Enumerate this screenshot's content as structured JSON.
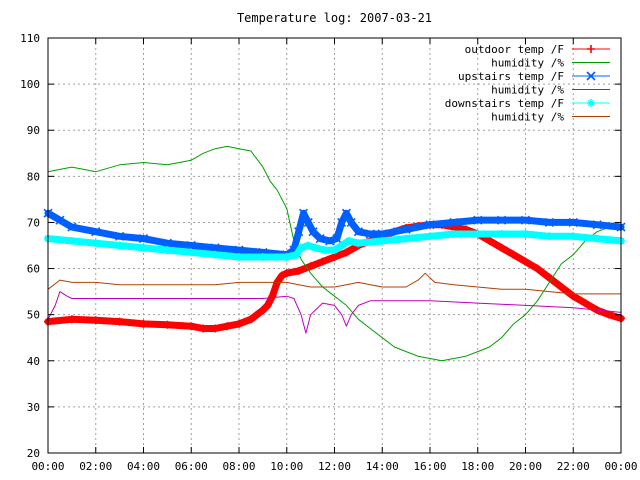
{
  "chart_data": {
    "type": "line",
    "title": "Temperature log: 2007-03-21",
    "xlabel": "",
    "ylabel": "",
    "xlim": [
      0,
      24
    ],
    "ylim": [
      20,
      110
    ],
    "grid": true,
    "legend_position": "top-right",
    "x_ticks": [
      "00:00",
      "02:00",
      "04:00",
      "06:00",
      "08:00",
      "10:00",
      "12:00",
      "14:00",
      "16:00",
      "18:00",
      "20:00",
      "22:00",
      "00:00"
    ],
    "y_ticks": [
      "20",
      "30",
      "40",
      "50",
      "60",
      "70",
      "80",
      "90",
      "100",
      "110"
    ],
    "series": [
      {
        "name": "outdoor temp /F",
        "color": "#ff0000",
        "marker": "plus",
        "x": [
          0,
          1,
          2,
          3,
          4,
          5,
          6,
          6.5,
          7,
          7.5,
          8,
          8.5,
          9,
          9.2,
          9.4,
          9.6,
          9.8,
          10,
          10.5,
          11,
          11.5,
          12,
          12.5,
          13,
          13.5,
          14,
          14.5,
          15,
          15.5,
          16,
          16.5,
          17,
          17.5,
          18,
          18.5,
          19,
          19.5,
          20,
          20.5,
          21,
          21.5,
          22,
          22.5,
          23,
          23.5,
          24
        ],
        "values": [
          48.5,
          49,
          48.8,
          48.5,
          48,
          47.8,
          47.5,
          47,
          47,
          47.5,
          48,
          49,
          51,
          52,
          54,
          57,
          58.5,
          59,
          59.5,
          60.5,
          61.5,
          62.5,
          63.5,
          65,
          66,
          67,
          68,
          68.8,
          69.2,
          69.5,
          69.5,
          69,
          68.5,
          67.5,
          66,
          64.5,
          63,
          61.5,
          60,
          58,
          56,
          54,
          52.5,
          51,
          50,
          49.2
        ]
      },
      {
        "name": "humidity /%",
        "color": "#00a000",
        "marker": "none",
        "x": [
          0,
          0.5,
          1,
          1.5,
          2,
          3,
          4,
          5,
          6,
          6.5,
          7,
          7.5,
          8,
          8.5,
          9,
          9.3,
          9.6,
          10,
          10.3,
          10.6,
          11,
          11.5,
          12,
          12.5,
          13,
          13.5,
          14,
          14.5,
          15,
          15.5,
          16,
          16.5,
          17,
          17.5,
          18,
          18.5,
          19,
          19.5,
          20,
          20.5,
          21,
          21.5,
          22,
          22.5,
          23,
          23.5,
          24
        ],
        "values": [
          81,
          81.5,
          82,
          81.5,
          81,
          82.5,
          83,
          82.5,
          83.5,
          85,
          86,
          86.5,
          86,
          85.5,
          82,
          79,
          77,
          73,
          66,
          62,
          59,
          56,
          54,
          52,
          49,
          47,
          45,
          43,
          42,
          41,
          40.5,
          40,
          40.5,
          41,
          42,
          43,
          45,
          48,
          50,
          53,
          57,
          61,
          63,
          66,
          68,
          69,
          69
        ]
      },
      {
        "name": "upstairs temp /F",
        "color": "#0060ff",
        "marker": "x",
        "x": [
          0,
          0.5,
          1,
          2,
          3,
          4,
          5,
          6,
          7,
          8,
          9,
          10,
          10.3,
          10.5,
          10.7,
          10.9,
          11.1,
          11.4,
          11.8,
          12.1,
          12.3,
          12.5,
          12.7,
          13,
          13.5,
          14,
          15,
          16,
          17,
          18,
          19,
          20,
          21,
          22,
          23,
          24
        ],
        "values": [
          72,
          70.5,
          69,
          68,
          67,
          66.5,
          65.5,
          65,
          64.5,
          64,
          63.5,
          63,
          64,
          68,
          72,
          70,
          68,
          66.5,
          66,
          66.5,
          70,
          72,
          70,
          68,
          67.5,
          67.5,
          68.5,
          69.5,
          70,
          70.5,
          70.5,
          70.5,
          70,
          70,
          69.5,
          69
        ]
      },
      {
        "name": "humidity /%",
        "color": "#c000c0",
        "marker": "none",
        "x": [
          0,
          0.3,
          0.5,
          0.8,
          1,
          2,
          4,
          6,
          8,
          9,
          10,
          10.3,
          10.6,
          10.8,
          11,
          11.5,
          12,
          12.3,
          12.5,
          12.7,
          13,
          13.5,
          14,
          16,
          18,
          20,
          22,
          24
        ],
        "values": [
          49,
          52,
          55,
          54,
          53.5,
          53.5,
          53.5,
          53.5,
          53.5,
          53.5,
          54,
          53.5,
          50,
          46,
          50,
          52.5,
          52,
          50,
          47.5,
          50,
          52,
          53,
          53,
          53,
          52.5,
          52,
          51.5,
          50.5
        ]
      },
      {
        "name": "downstairs temp /F",
        "color": "#00ffff",
        "marker": "star",
        "x": [
          0,
          1,
          2,
          3,
          4,
          5,
          6,
          7,
          8,
          9,
          10,
          10.4,
          10.6,
          10.9,
          11.2,
          11.6,
          12,
          12.3,
          12.6,
          13,
          14,
          15,
          16,
          17,
          18,
          19,
          20,
          21,
          22,
          23,
          24
        ],
        "values": [
          66.5,
          66,
          65.5,
          65,
          64.5,
          64,
          63.5,
          63,
          62.5,
          62.5,
          62.5,
          63,
          64.5,
          65,
          64.5,
          64,
          64,
          65,
          66,
          65.5,
          66,
          66.5,
          67,
          67.5,
          67.5,
          67.5,
          67.5,
          67,
          67,
          66.5,
          66
        ]
      },
      {
        "name": "humidity /%",
        "color": "#b04000",
        "marker": "none",
        "x": [
          0,
          0.5,
          1,
          2,
          3,
          4,
          5,
          6,
          7,
          8,
          9,
          10,
          10.5,
          11,
          11.5,
          12,
          12.5,
          13,
          13.5,
          14,
          15,
          15.5,
          15.8,
          16.2,
          17,
          18,
          19,
          20,
          21,
          22,
          23,
          24
        ],
        "values": [
          55.5,
          57.5,
          57,
          57,
          56.5,
          56.5,
          56.5,
          56.5,
          56.5,
          57,
          57,
          57,
          56.5,
          56,
          56,
          56,
          56.5,
          57,
          56.5,
          56,
          56,
          57.5,
          59,
          57,
          56.5,
          56,
          55.5,
          55.5,
          55,
          54.5,
          54.5,
          54.5
        ]
      }
    ]
  }
}
